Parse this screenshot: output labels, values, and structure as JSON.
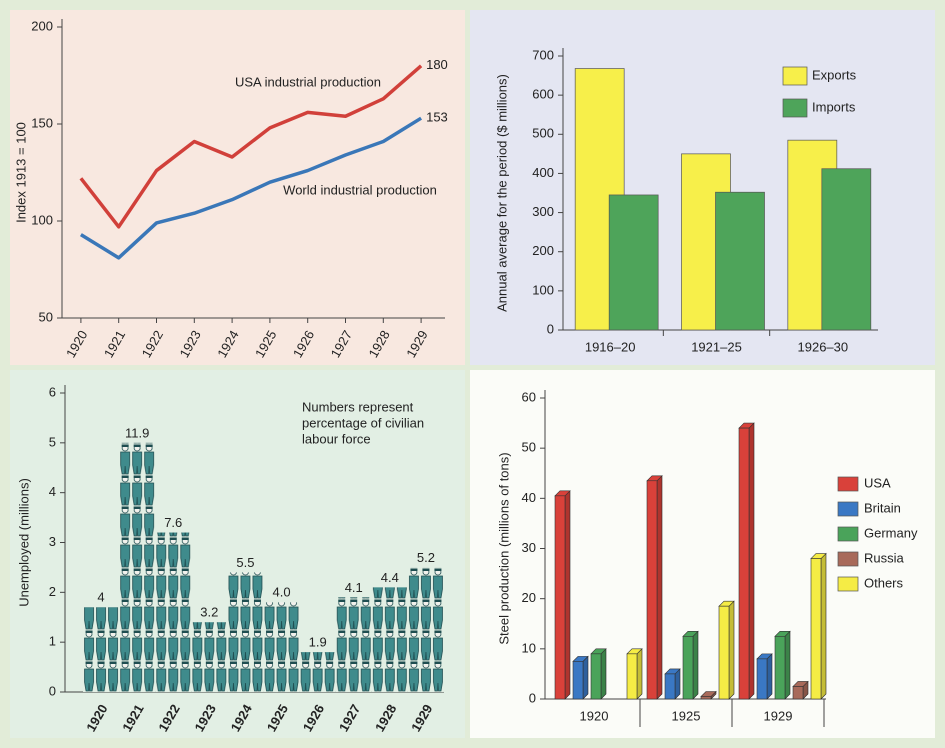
{
  "chart_data": [
    {
      "type": "line",
      "categories": [
        "1920",
        "1921",
        "1922",
        "1923",
        "1924",
        "1925",
        "1926",
        "1927",
        "1928",
        "1929"
      ],
      "series": [
        {
          "name": "USA industrial production",
          "color": "#d1403a",
          "values": [
            122,
            97,
            126,
            141,
            133,
            148,
            156,
            154,
            163,
            180
          ]
        },
        {
          "name": "World industrial production",
          "color": "#3a77b8",
          "values": [
            93,
            81,
            99,
            104,
            111,
            120,
            126,
            134,
            141,
            153
          ]
        }
      ],
      "ylabel": "Index 1913 = 100",
      "ylim": [
        50,
        200
      ],
      "yticks": [
        50,
        100,
        150,
        200
      ]
    },
    {
      "type": "bar",
      "categories": [
        "1916–20",
        "1921–25",
        "1926–30"
      ],
      "series": [
        {
          "name": "Exports",
          "color": "#f7ef4a",
          "values": [
            668,
            450,
            485
          ]
        },
        {
          "name": "Imports",
          "color": "#4ea45a",
          "values": [
            345,
            352,
            412
          ]
        }
      ],
      "ylabel": "Annual average for the period ($ millions)",
      "ylim": [
        0,
        700
      ],
      "yticks": [
        0,
        100,
        200,
        300,
        400,
        500,
        600,
        700
      ],
      "legend": "upper right"
    },
    {
      "type": "pictogram",
      "categories": [
        "1920",
        "1921",
        "1922",
        "1923",
        "1924",
        "1925",
        "1926",
        "1927",
        "1928",
        "1929"
      ],
      "values": [
        1.7,
        5.0,
        3.2,
        1.4,
        2.4,
        1.8,
        0.8,
        1.9,
        2.1,
        2.5
      ],
      "percent_labels": [
        "4",
        "11.9",
        "7.6",
        "3.2",
        "5.5",
        "4.0",
        "1.9",
        "4.1",
        "4.4",
        "5.2"
      ],
      "note_lines": [
        "Numbers represent",
        "percentage of civilian",
        "labour force"
      ],
      "color": "#3f8b8c",
      "ylabel": "Unemployed (millions)",
      "ylim": [
        0,
        6
      ],
      "yticks": [
        0,
        1,
        2,
        3,
        4,
        5,
        6
      ]
    },
    {
      "type": "bar3d",
      "categories": [
        "1920",
        "1925",
        "1929"
      ],
      "series": [
        {
          "name": "USA",
          "color": "#d9413a",
          "values": [
            40.5,
            43.5,
            54
          ]
        },
        {
          "name": "Britain",
          "color": "#3a78c4",
          "values": [
            7.5,
            5,
            8
          ]
        },
        {
          "name": "Germany",
          "color": "#4aa35a",
          "values": [
            9,
            12.5,
            12.5
          ]
        },
        {
          "name": "Russia",
          "color": "#a86a5a",
          "values": [
            0,
            0.5,
            2.5
          ]
        },
        {
          "name": "Others",
          "color": "#f5ec45",
          "values": [
            9,
            18.5,
            28
          ]
        }
      ],
      "ylabel": "Steel production (millions of tons)",
      "ylim": [
        0,
        60
      ],
      "yticks": [
        0,
        10,
        20,
        30,
        40,
        50,
        60
      ],
      "legend": "right"
    }
  ]
}
